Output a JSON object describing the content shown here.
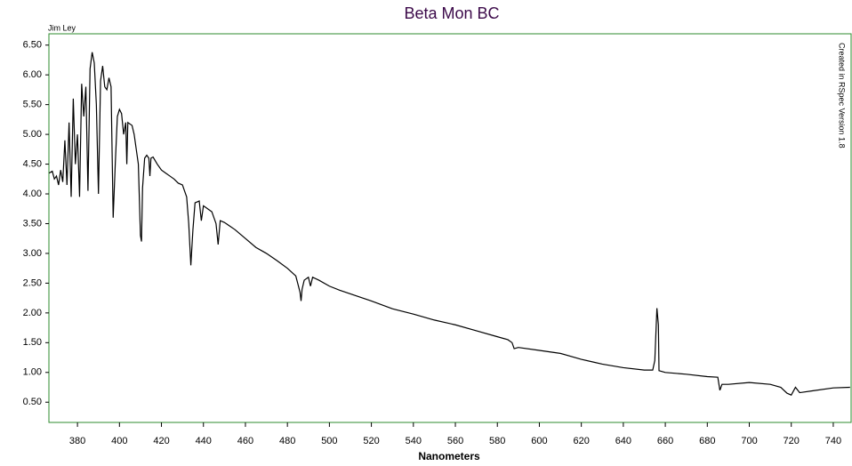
{
  "chart_data": {
    "type": "line",
    "title": "Beta Mon BC",
    "xlabel": "Nanometers",
    "annotations": [
      "Jim Ley",
      "Created in RSpec Version 1.8"
    ],
    "color": "#000000",
    "grid": false,
    "xlim": [
      366.4,
      748.5
    ],
    "xticks": [
      380,
      400,
      420,
      440,
      460,
      480,
      500,
      520,
      540,
      560,
      580,
      600,
      620,
      640,
      660,
      680,
      700,
      720,
      740
    ],
    "ylim": [
      0.16,
      6.69
    ],
    "yticks": [
      {
        "value": 0.5,
        "label": "0.50"
      },
      {
        "value": 1,
        "label": "1.00"
      },
      {
        "value": 1.5,
        "label": "1.50"
      },
      {
        "value": 2,
        "label": "2.00"
      },
      {
        "value": 2.5,
        "label": "2.50"
      },
      {
        "value": 3,
        "label": "3.00"
      },
      {
        "value": 3.5,
        "label": "3.50"
      },
      {
        "value": 4,
        "label": "4.00"
      },
      {
        "value": 4.5,
        "label": "4.50"
      },
      {
        "value": 5,
        "label": "5.00"
      },
      {
        "value": 5.5,
        "label": "5.50"
      },
      {
        "value": 6,
        "label": "6.00"
      },
      {
        "value": 6.5,
        "label": "6.50"
      }
    ],
    "x": [
      366.5,
      368,
      369,
      370,
      371,
      372,
      373,
      374,
      375,
      376,
      377,
      378,
      379,
      380,
      381,
      382,
      383,
      384,
      385,
      386,
      387,
      388,
      389,
      390,
      391,
      392,
      393,
      394,
      395,
      396,
      397,
      398,
      399,
      400,
      401,
      402,
      403,
      403.5,
      404,
      406,
      407,
      408,
      409,
      410,
      410.5,
      411,
      412,
      413,
      414,
      414.5,
      415,
      416,
      418,
      420,
      422,
      424,
      426,
      428,
      430,
      432,
      433,
      434,
      435,
      436,
      438,
      439,
      440,
      442,
      444,
      446,
      447,
      448,
      450,
      455,
      460,
      465,
      470,
      475,
      480,
      484,
      486,
      486.5,
      487,
      488,
      490,
      491,
      492,
      495,
      500,
      505,
      510,
      520,
      530,
      540,
      550,
      560,
      570,
      580,
      585,
      587,
      588,
      590,
      600,
      610,
      620,
      625,
      630,
      640,
      650,
      654,
      655,
      656,
      656.7,
      657,
      660,
      670,
      680,
      685,
      686,
      687,
      690,
      700,
      710,
      715,
      718,
      720,
      722,
      724,
      730,
      740,
      748
    ],
    "values": [
      4.35,
      4.38,
      4.25,
      4.3,
      4.15,
      4.4,
      4.2,
      4.9,
      4.15,
      5.2,
      3.95,
      5.6,
      4.5,
      5.0,
      3.95,
      5.85,
      5.3,
      5.8,
      4.05,
      6.1,
      6.38,
      6.2,
      5.5,
      4.0,
      5.9,
      6.15,
      5.8,
      5.75,
      5.95,
      5.8,
      3.6,
      4.5,
      5.3,
      5.42,
      5.35,
      5.0,
      5.2,
      4.5,
      5.2,
      5.15,
      5.0,
      4.75,
      4.5,
      3.3,
      3.2,
      4.1,
      4.6,
      4.65,
      4.6,
      4.3,
      4.6,
      4.62,
      4.5,
      4.4,
      4.35,
      4.3,
      4.25,
      4.18,
      4.15,
      3.95,
      3.5,
      2.8,
      3.4,
      3.85,
      3.88,
      3.55,
      3.8,
      3.75,
      3.7,
      3.5,
      3.15,
      3.55,
      3.52,
      3.4,
      3.25,
      3.1,
      3.0,
      2.88,
      2.75,
      2.62,
      2.35,
      2.2,
      2.4,
      2.55,
      2.6,
      2.45,
      2.6,
      2.55,
      2.45,
      2.38,
      2.32,
      2.2,
      2.07,
      1.98,
      1.88,
      1.8,
      1.7,
      1.6,
      1.55,
      1.5,
      1.4,
      1.42,
      1.37,
      1.32,
      1.22,
      1.18,
      1.14,
      1.08,
      1.04,
      1.04,
      1.2,
      2.08,
      1.8,
      1.03,
      1.0,
      0.97,
      0.93,
      0.92,
      0.7,
      0.8,
      0.8,
      0.83,
      0.8,
      0.75,
      0.65,
      0.62,
      0.75,
      0.66,
      0.69,
      0.74,
      0.75
    ]
  }
}
